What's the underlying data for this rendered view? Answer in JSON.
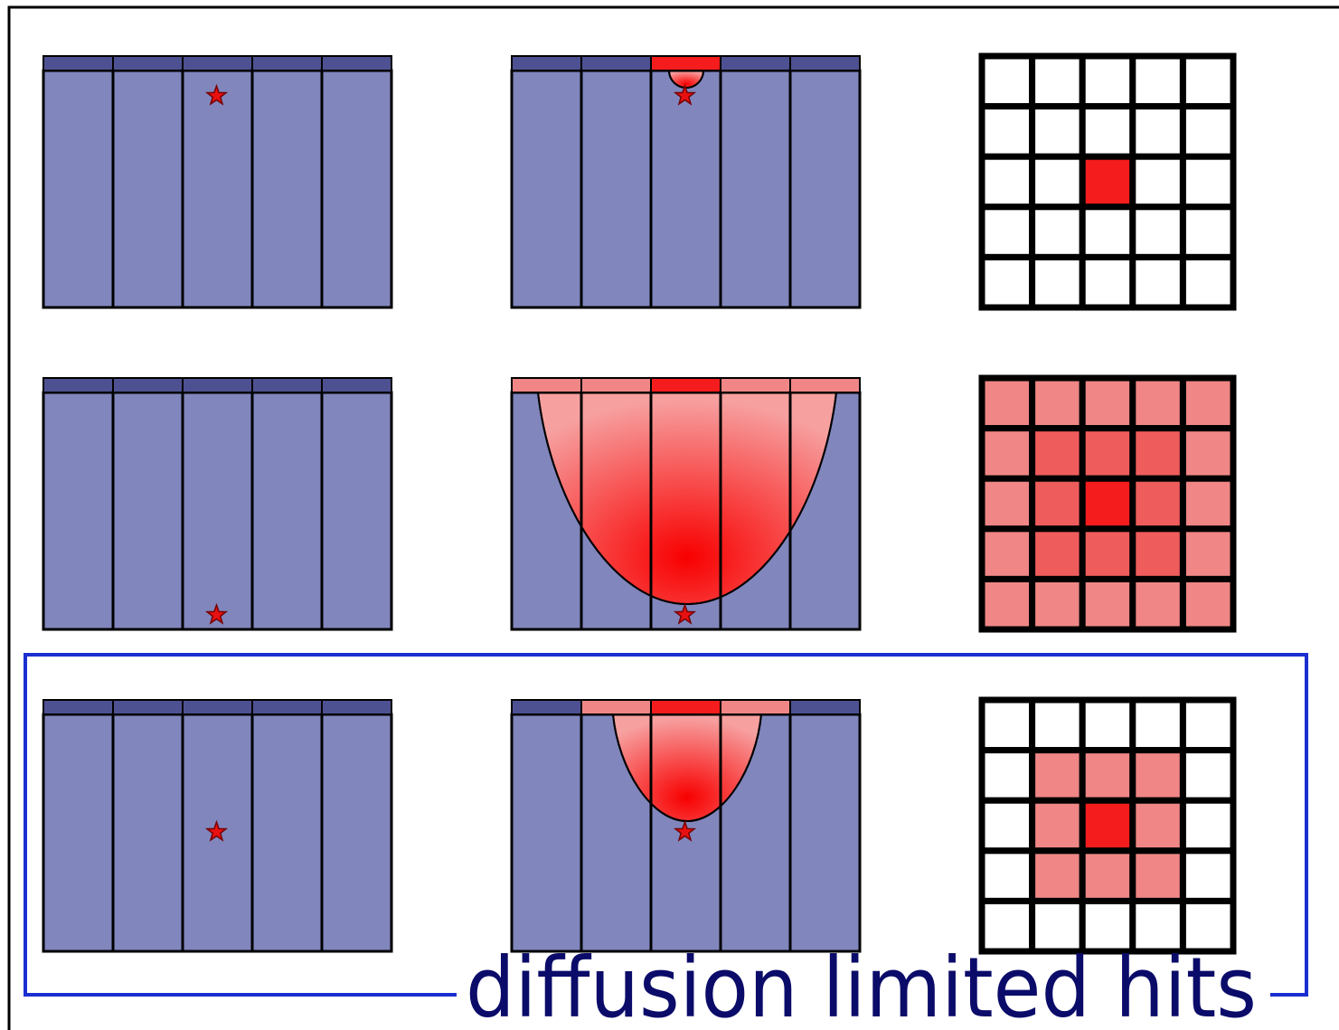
{
  "label": "diffusion limited hits"
}
